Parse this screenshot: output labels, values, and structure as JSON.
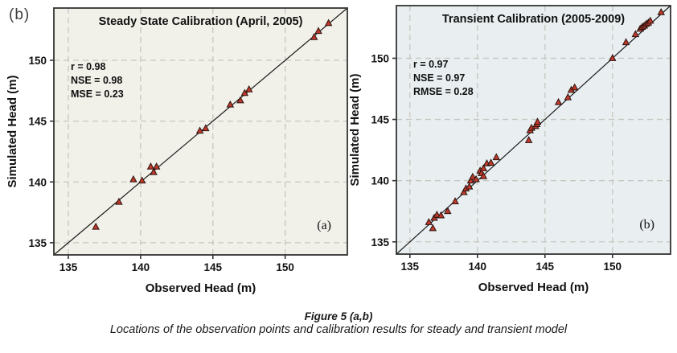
{
  "page": {
    "outer_label": "(b)",
    "background": "#ffffff"
  },
  "caption": {
    "title": "Figure 5 (a,b)",
    "subtitle": "Locations of the observation points and calibration results for steady and transient model"
  },
  "colors": {
    "marker_fill": "#c0392b",
    "marker_stroke": "#2a1410",
    "grid": "#c7c7c0",
    "border": "#333333",
    "identity_line": "#1c1c1c",
    "text": "#111111",
    "tick": "#333333"
  },
  "chart_data": [
    {
      "type": "scatter",
      "title": "Steady State Calibration (April, 2005)",
      "xlabel": "Observed Head (m)",
      "ylabel": "Simulated Head (m)",
      "xlim": [
        134,
        154.3
      ],
      "ylim": [
        134,
        154.3
      ],
      "xticks": [
        135,
        140,
        145,
        150
      ],
      "yticks": [
        135,
        140,
        145,
        150
      ],
      "grid": true,
      "legend": "none",
      "identity_line": true,
      "bg": "#f1f0e9",
      "stats": [
        "r = 0.98",
        "NSE = 0.98",
        "MSE = 0.23"
      ],
      "corner_label": "(a)",
      "points": [
        [
          136.9,
          136.3
        ],
        [
          138.5,
          138.35
        ],
        [
          139.5,
          140.2
        ],
        [
          140.1,
          140.1
        ],
        [
          140.7,
          141.25
        ],
        [
          140.9,
          140.8
        ],
        [
          141.1,
          141.25
        ],
        [
          144.1,
          144.2
        ],
        [
          144.5,
          144.4
        ],
        [
          146.2,
          146.35
        ],
        [
          146.9,
          146.7
        ],
        [
          147.2,
          147.3
        ],
        [
          147.5,
          147.6
        ],
        [
          152.0,
          151.9
        ],
        [
          152.3,
          152.4
        ],
        [
          153.0,
          153.05
        ]
      ]
    },
    {
      "type": "scatter",
      "title": "Transient Calibration (2005-2009)",
      "xlabel": "Observed Head (m)",
      "ylabel": "Simulated Head (m)",
      "xlim": [
        134,
        154.3
      ],
      "ylim": [
        134,
        154.3
      ],
      "xticks": [
        135,
        140,
        145,
        150
      ],
      "yticks": [
        135,
        140,
        145,
        150
      ],
      "grid": true,
      "legend": "none",
      "identity_line": true,
      "bg": "#e9eef0",
      "stats": [
        "r = 0.97",
        "NSE = 0.97",
        "RMSE = 0.28"
      ],
      "corner_label": "(b)",
      "points": [
        [
          136.4,
          136.6
        ],
        [
          136.7,
          136.1
        ],
        [
          136.8,
          136.95
        ],
        [
          137.0,
          137.2
        ],
        [
          137.3,
          137.15
        ],
        [
          137.8,
          137.5
        ],
        [
          138.35,
          138.3
        ],
        [
          139.0,
          139.05
        ],
        [
          139.15,
          139.35
        ],
        [
          139.4,
          139.5
        ],
        [
          139.5,
          140.0
        ],
        [
          139.65,
          140.3
        ],
        [
          139.9,
          140.1
        ],
        [
          140.2,
          140.8
        ],
        [
          140.3,
          140.6
        ],
        [
          140.45,
          140.35
        ],
        [
          140.45,
          141.0
        ],
        [
          140.7,
          141.4
        ],
        [
          141.0,
          141.45
        ],
        [
          141.4,
          141.9
        ],
        [
          143.8,
          143.3
        ],
        [
          143.9,
          144.1
        ],
        [
          144.0,
          144.3
        ],
        [
          144.3,
          144.45
        ],
        [
          144.4,
          144.6
        ],
        [
          144.45,
          144.8
        ],
        [
          146.0,
          146.4
        ],
        [
          146.7,
          146.8
        ],
        [
          146.95,
          147.4
        ],
        [
          147.2,
          147.6
        ],
        [
          150.0,
          150.0
        ],
        [
          151.0,
          151.3
        ],
        [
          151.7,
          151.95
        ],
        [
          152.05,
          152.4
        ],
        [
          152.2,
          152.55
        ],
        [
          152.35,
          152.65
        ],
        [
          152.5,
          152.8
        ],
        [
          152.65,
          152.9
        ],
        [
          152.8,
          153.05
        ],
        [
          153.6,
          153.75
        ]
      ]
    }
  ]
}
